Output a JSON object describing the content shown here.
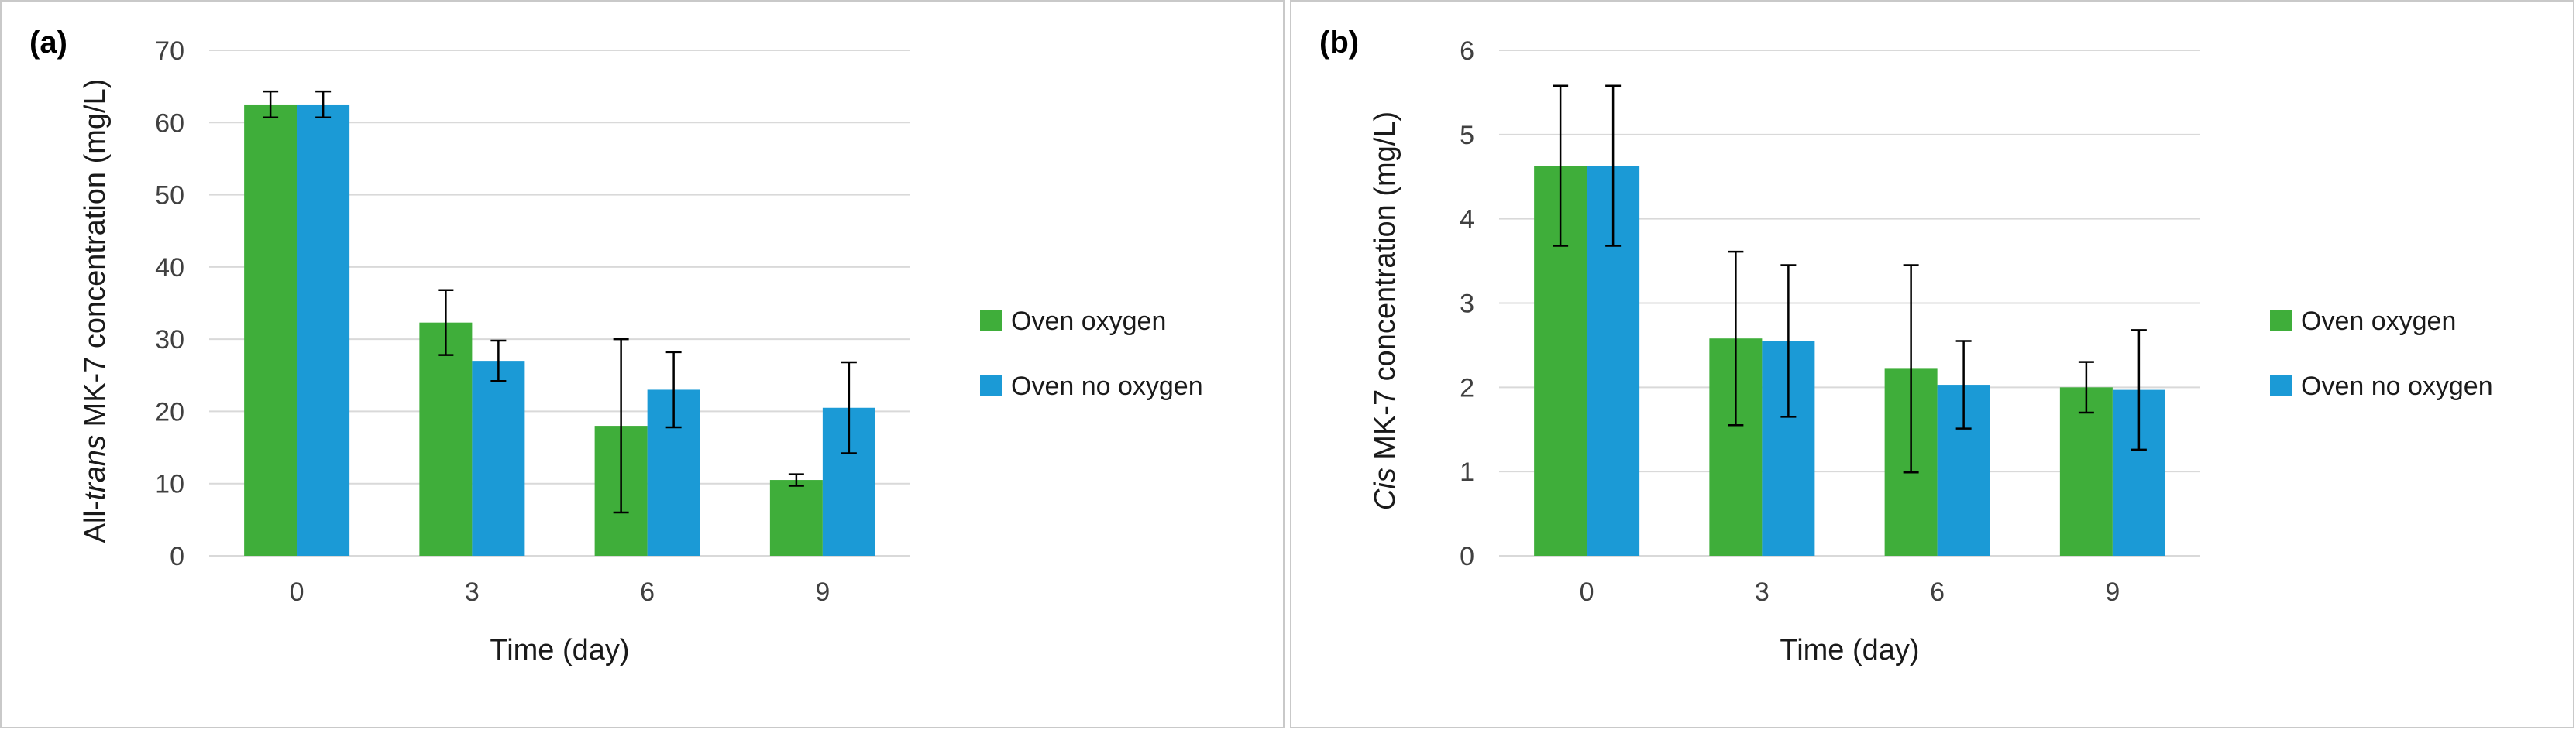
{
  "chart_data": [
    {
      "type": "bar",
      "panel_label": "(a)",
      "title": "",
      "xlabel": "Time (day)",
      "ylabel_prefix": "All-",
      "ylabel_italic": "trans",
      "ylabel_suffix": " MK-7 concentration (mg/L)",
      "categories": [
        "0",
        "3",
        "6",
        "9"
      ],
      "ylim": [
        0,
        70
      ],
      "yticks": [
        0,
        10,
        20,
        30,
        40,
        50,
        60,
        70
      ],
      "grid": true,
      "legend_position": "right",
      "series": [
        {
          "name": "Oven oxygen",
          "color": "#3fae3a",
          "values": [
            62.5,
            32.3,
            18.0,
            10.5
          ],
          "errors": [
            1.8,
            4.5,
            12.0,
            0.8
          ]
        },
        {
          "name": "Oven no oxygen",
          "color": "#1b9ad6",
          "values": [
            62.5,
            27.0,
            23.0,
            20.5
          ],
          "errors": [
            1.8,
            2.8,
            5.2,
            6.3
          ]
        }
      ]
    },
    {
      "type": "bar",
      "panel_label": "(b)",
      "title": "",
      "xlabel": "Time (day)",
      "ylabel_prefix": "",
      "ylabel_italic": "Cis",
      "ylabel_suffix": " MK-7 concentration (mg/L)",
      "categories": [
        "0",
        "3",
        "6",
        "9"
      ],
      "ylim": [
        0,
        6
      ],
      "yticks": [
        0,
        1,
        2,
        3,
        4,
        5,
        6
      ],
      "grid": true,
      "legend_position": "right",
      "series": [
        {
          "name": "Oven oxygen",
          "color": "#3fae3a",
          "values": [
            4.63,
            2.58,
            2.22,
            2.0
          ],
          "errors": [
            0.95,
            1.03,
            1.23,
            0.3
          ]
        },
        {
          "name": "Oven no oxygen",
          "color": "#1b9ad6",
          "values": [
            4.63,
            2.55,
            2.03,
            1.97
          ],
          "errors": [
            0.95,
            0.9,
            0.52,
            0.71
          ]
        }
      ]
    }
  ]
}
